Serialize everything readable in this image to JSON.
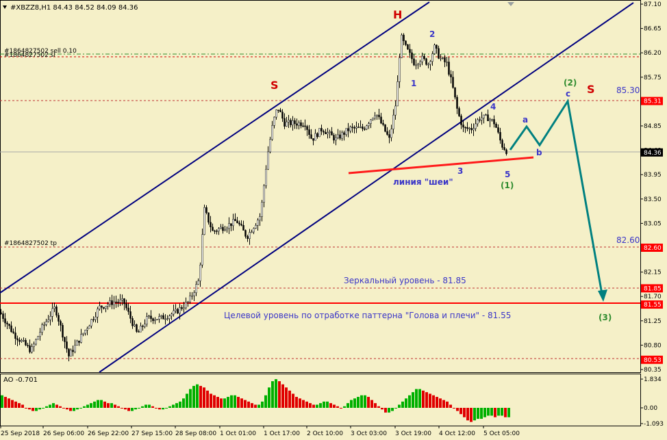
{
  "header": {
    "symbol_info": "#XBZZ8,H1  84.43 84.52 84.09 84.36"
  },
  "order_labels": {
    "sell": "#1864827502 sell 0.10",
    "sl": "#1864827502 sl",
    "tp": "#1864827502 tp"
  },
  "indicator": {
    "label": "AO -0.701",
    "ticks": [
      "1.834",
      "0.00",
      "-1.093"
    ]
  },
  "colors": {
    "background": "#f5f0c8",
    "channel": "#00007f",
    "neckline": "#ff0000",
    "forecast": "#008080",
    "ao_up": "#00b000",
    "ao_down": "#e00000",
    "marker_red": "#d00000",
    "wave_blue": "#3a35c8",
    "wave_green": "#2e8b2e"
  },
  "annotations": {
    "S_left": "S",
    "H": "H",
    "S_right": "S",
    "neckline_label": "линия \"шеи\"",
    "mirror_level": "Зеркальный уровень - 81.85",
    "target_level": "Целевой уровень по отработке паттерна \"Голова и плечи\" - 81.55",
    "w1": "1",
    "w2": "2",
    "w3": "3",
    "w4": "4",
    "w5": "5",
    "w_1": "(1)",
    "w_2": "(2)",
    "w_3": "(3)",
    "wa": "a",
    "wb": "b",
    "wc": "c",
    "lvl_85_30": "85.30",
    "lvl_82_60": "82.60"
  },
  "chart_data": {
    "type": "candlestick",
    "symbol": "#XBZZ8",
    "timeframe": "H1",
    "ohlc_last": {
      "open": 84.43,
      "high": 84.52,
      "low": 84.09,
      "close": 84.36
    },
    "ylim": [
      80.35,
      87.1
    ],
    "y_ticks": [
      "87.10",
      "86.65",
      "86.20",
      "85.75",
      "85.30",
      "84.85",
      "84.40",
      "83.95",
      "83.50",
      "83.05",
      "82.60",
      "82.15",
      "81.70",
      "81.25",
      "80.80",
      "80.35"
    ],
    "x_ticks": [
      "25 Sep 2018",
      "26 Sep 06:00",
      "26 Sep 22:00",
      "27 Sep 15:00",
      "28 Sep 08:00",
      "1 Oct 01:00",
      "1 Oct 17:00",
      "2 Oct 10:00",
      "3 Oct 03:00",
      "3 Oct 19:00",
      "4 Oct 12:00",
      "5 Oct 05:00"
    ],
    "price_tags": [
      {
        "value": "85.31",
        "color": "#ff0000"
      },
      {
        "value": "84.36",
        "color": "#000000"
      },
      {
        "value": "82.60",
        "color": "#ff0000"
      },
      {
        "value": "81.85",
        "color": "#ff0000"
      },
      {
        "value": "81.55",
        "color": "#ff0000"
      },
      {
        "value": "80.53",
        "color": "#ff0000"
      }
    ],
    "horizontal_levels": [
      86.14,
      86.11,
      85.31,
      84.36,
      82.6,
      81.85,
      81.55,
      80.53
    ],
    "price_path": [
      [
        0,
        81.4
      ],
      [
        20,
        81.0
      ],
      [
        45,
        80.7
      ],
      [
        60,
        81.1
      ],
      [
        80,
        81.5
      ],
      [
        100,
        80.6
      ],
      [
        120,
        81.0
      ],
      [
        145,
        81.5
      ],
      [
        165,
        81.6
      ],
      [
        180,
        81.6
      ],
      [
        200,
        81.0
      ],
      [
        215,
        81.3
      ],
      [
        235,
        81.3
      ],
      [
        255,
        81.4
      ],
      [
        275,
        81.6
      ],
      [
        290,
        82.0
      ],
      [
        298,
        83.3
      ],
      [
        310,
        82.9
      ],
      [
        330,
        83.0
      ],
      [
        345,
        83.1
      ],
      [
        360,
        82.8
      ],
      [
        380,
        83.2
      ],
      [
        390,
        84.3
      ],
      [
        398,
        84.9
      ],
      [
        405,
        85.2
      ],
      [
        415,
        84.9
      ],
      [
        435,
        84.9
      ],
      [
        445,
        84.9
      ],
      [
        455,
        84.6
      ],
      [
        470,
        84.8
      ],
      [
        490,
        84.6
      ],
      [
        510,
        84.8
      ],
      [
        530,
        84.8
      ],
      [
        548,
        85.1
      ],
      [
        556,
        84.9
      ],
      [
        568,
        84.6
      ],
      [
        578,
        85.3
      ],
      [
        585,
        86.5
      ],
      [
        592,
        86.3
      ],
      [
        605,
        86.0
      ],
      [
        615,
        86.1
      ],
      [
        625,
        86.0
      ],
      [
        634,
        86.3
      ],
      [
        642,
        86.1
      ],
      [
        652,
        86.0
      ],
      [
        660,
        85.6
      ],
      [
        668,
        85.1
      ],
      [
        676,
        84.8
      ],
      [
        688,
        84.8
      ],
      [
        700,
        85.0
      ],
      [
        712,
        85.0
      ],
      [
        722,
        84.9
      ],
      [
        732,
        84.5
      ],
      [
        741,
        84.36
      ]
    ],
    "ao": [
      0.8,
      0.7,
      0.6,
      0.5,
      0.4,
      0.3,
      0.2,
      0.0,
      -0.1,
      -0.2,
      -0.2,
      -0.1,
      0.0,
      0.1,
      0.2,
      0.3,
      0.2,
      0.1,
      0.0,
      -0.1,
      -0.2,
      -0.2,
      -0.1,
      0.0,
      0.1,
      0.2,
      0.3,
      0.4,
      0.5,
      0.5,
      0.4,
      0.3,
      0.3,
      0.2,
      0.1,
      0.0,
      -0.1,
      -0.2,
      -0.2,
      -0.1,
      0.0,
      0.1,
      0.2,
      0.2,
      0.1,
      0.0,
      -0.1,
      -0.1,
      0.0,
      0.1,
      0.2,
      0.3,
      0.4,
      0.6,
      0.9,
      1.2,
      1.4,
      1.5,
      1.4,
      1.3,
      1.1,
      0.9,
      0.8,
      0.7,
      0.6,
      0.6,
      0.7,
      0.8,
      0.8,
      0.7,
      0.6,
      0.5,
      0.4,
      0.3,
      0.2,
      0.2,
      0.4,
      0.8,
      1.3,
      1.7,
      1.83,
      1.7,
      1.5,
      1.3,
      1.1,
      0.9,
      0.7,
      0.6,
      0.5,
      0.4,
      0.3,
      0.2,
      0.2,
      0.3,
      0.4,
      0.4,
      0.3,
      0.2,
      0.1,
      0.0,
      0.1,
      0.3,
      0.5,
      0.6,
      0.7,
      0.8,
      0.8,
      0.7,
      0.5,
      0.3,
      0.1,
      -0.1,
      -0.3,
      -0.3,
      -0.2,
      0.0,
      0.2,
      0.4,
      0.6,
      0.8,
      1.0,
      1.2,
      1.2,
      1.1,
      1.0,
      0.9,
      0.8,
      0.7,
      0.6,
      0.5,
      0.4,
      0.2,
      0.0,
      -0.2,
      -0.4,
      -0.6,
      -0.8,
      -0.9,
      -0.8,
      -0.7,
      -0.7,
      -0.6,
      -0.5,
      -0.5,
      -0.6,
      -0.5,
      -0.5,
      -0.6,
      -0.6,
      -0.7,
      -0.701
    ]
  }
}
